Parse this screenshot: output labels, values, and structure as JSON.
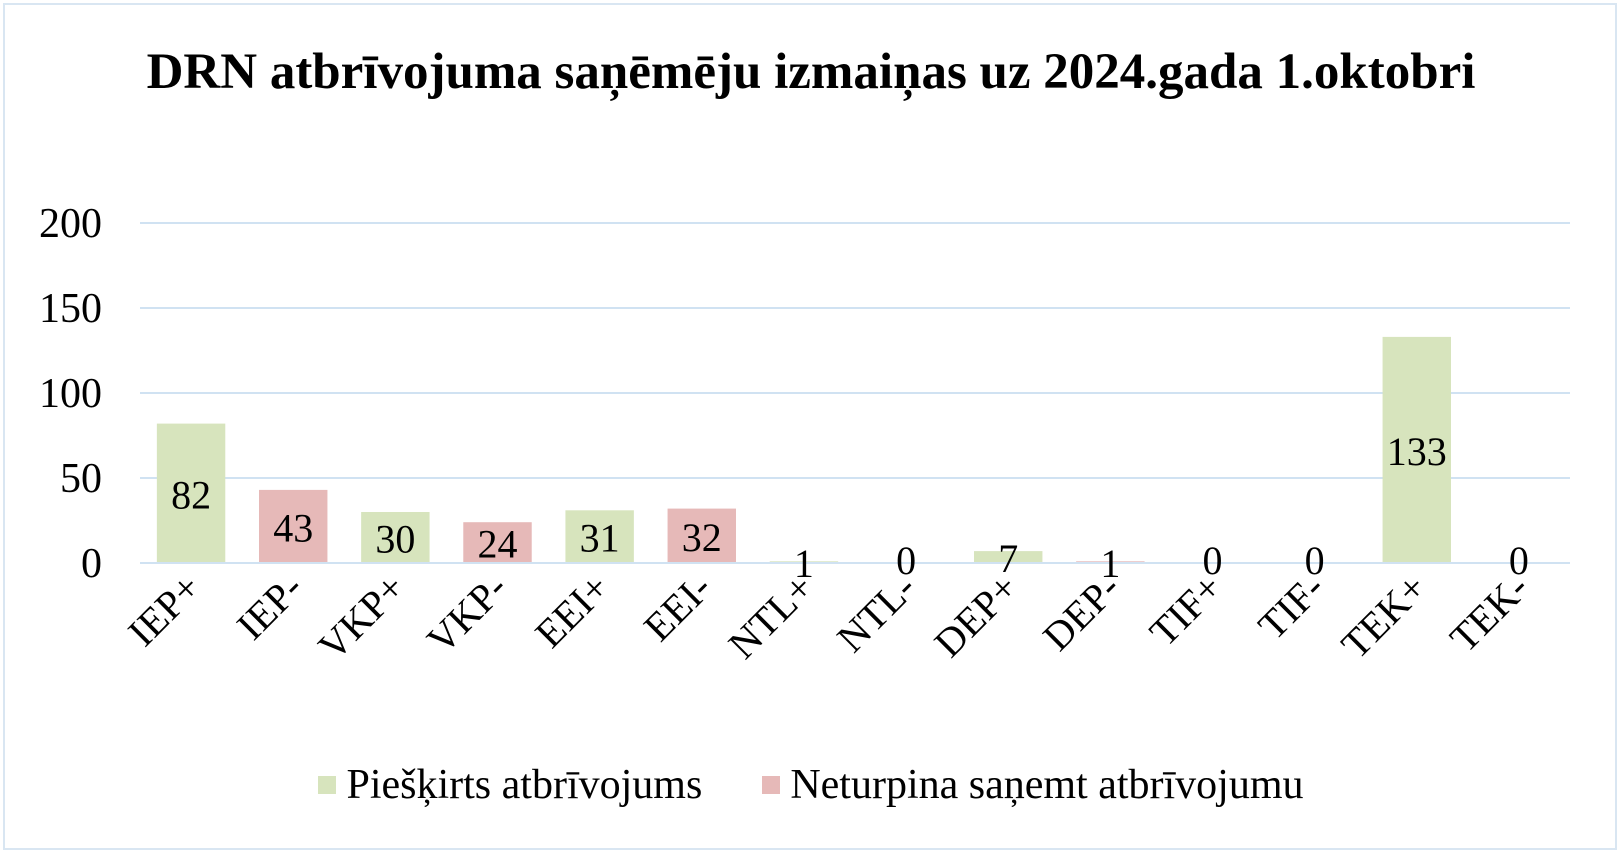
{
  "chart_data": {
    "type": "bar",
    "title": "DRN atbrīvojuma saņēmēju izmaiņas uz 2024.gada 1.oktobri",
    "categories": [
      "IEP+",
      "IEP-",
      "VKP+",
      "VKP-",
      "EEI+",
      "EEI-",
      "NTL+",
      "NTL-",
      "DEP+",
      "DEP-",
      "TIF+",
      "TIF-",
      "TEK+",
      "TEK-"
    ],
    "values": [
      82,
      43,
      30,
      24,
      31,
      32,
      1,
      0,
      7,
      1,
      0,
      0,
      133,
      0
    ],
    "bar_series": [
      "Piešķirts atbrīvojums",
      "Neturpina saņemt atbrīvojumu",
      "Piešķirts atbrīvojums",
      "Neturpina saņemt atbrīvojumu",
      "Piešķirts atbrīvojums",
      "Neturpina saņemt atbrīvojumu",
      "Piešķirts atbrīvojums",
      "Neturpina saņemt atbrīvojumu",
      "Piešķirts atbrīvojums",
      "Neturpina saņemt atbrīvojumu",
      "Piešķirts atbrīvojums",
      "Neturpina saņemt atbrīvojumu",
      "Piešķirts atbrīvojums",
      "Neturpina saņemt atbrīvojumu"
    ],
    "series": [
      {
        "name": "Piešķirts atbrīvojums",
        "color": "#d7e4bd"
      },
      {
        "name": "Neturpina saņemt atbrīvojumu",
        "color": "#e6b9b8"
      }
    ],
    "ylim": [
      0,
      200
    ],
    "yticks": [
      0,
      50,
      100,
      150,
      200
    ],
    "xlabel": "",
    "ylabel": "",
    "grid": true,
    "gridline_color": "#d0e2f2",
    "legend_position": "bottom"
  }
}
